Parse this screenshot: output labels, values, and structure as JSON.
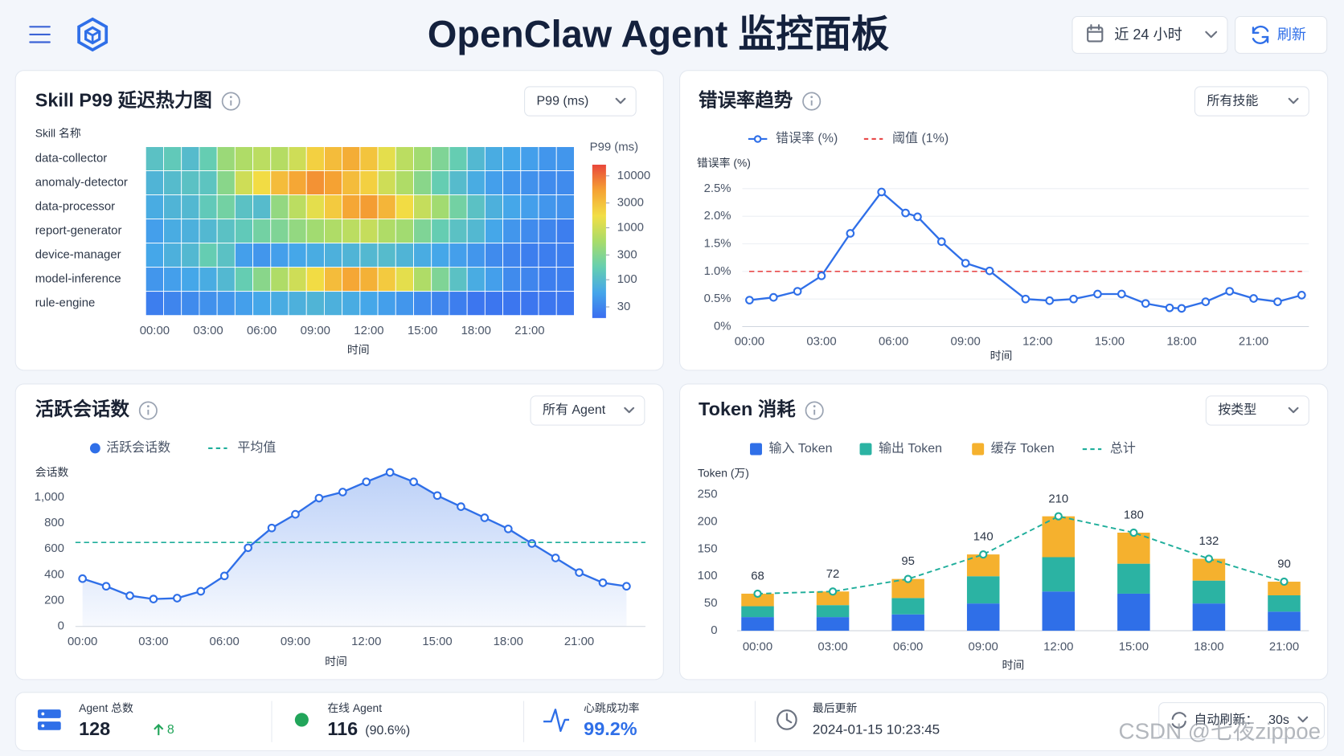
{
  "header": {
    "title": "OpenClaw Agent 监控面板",
    "time_range": "近 24 小时",
    "refresh": "刷新"
  },
  "chart_data": [
    {
      "type": "heatmap",
      "title": "Skill P99 延迟热力图",
      "control": "P99 (ms)",
      "y_label": "Skill 名称",
      "x_label": "时间",
      "colorbar_label": "P99 (ms)",
      "categories": [
        "data-collector",
        "anomaly-detector",
        "data-processor",
        "report-generator",
        "device-manager",
        "model-inference",
        "rule-engine"
      ],
      "x": [
        0,
        1,
        2,
        3,
        4,
        5,
        6,
        7,
        8,
        9,
        10,
        11,
        12,
        13,
        14,
        15,
        16,
        17,
        18,
        19,
        20,
        21,
        22,
        23
      ],
      "xlim": [
        -0.5,
        23.5
      ],
      "xticks": [
        {
          "value": 0,
          "label": "00:00"
        },
        {
          "value": 3,
          "label": "03:00"
        },
        {
          "value": 6,
          "label": "06:00"
        },
        {
          "value": 9,
          "label": "09:00"
        },
        {
          "value": 12,
          "label": "12:00"
        },
        {
          "value": 15,
          "label": "15:00"
        },
        {
          "value": 18,
          "label": "18:00"
        },
        {
          "value": 21,
          "label": "21:00"
        }
      ],
      "values": [
        [
          150,
          180,
          130,
          200,
          450,
          600,
          700,
          650,
          900,
          1800,
          2500,
          3200,
          2200,
          1200,
          700,
          500,
          300,
          200,
          120,
          90,
          80,
          70,
          60,
          60
        ],
        [
          110,
          130,
          150,
          160,
          350,
          900,
          1500,
          2500,
          3500,
          4500,
          3800,
          2500,
          1800,
          900,
          600,
          350,
          200,
          130,
          90,
          70,
          60,
          55,
          50,
          50
        ],
        [
          90,
          110,
          120,
          180,
          250,
          150,
          130,
          400,
          700,
          1200,
          2000,
          3500,
          4000,
          2800,
          1500,
          800,
          500,
          250,
          150,
          100,
          80,
          70,
          60,
          55
        ],
        [
          70,
          90,
          100,
          120,
          150,
          180,
          250,
          300,
          400,
          500,
          600,
          700,
          800,
          600,
          500,
          300,
          200,
          150,
          120,
          80,
          60,
          50,
          45,
          40
        ],
        [
          80,
          100,
          120,
          200,
          150,
          70,
          60,
          70,
          80,
          90,
          100,
          110,
          120,
          130,
          110,
          90,
          80,
          70,
          60,
          50,
          45,
          40,
          40,
          40
        ],
        [
          60,
          70,
          80,
          90,
          120,
          200,
          350,
          600,
          900,
          1500,
          2500,
          3500,
          3000,
          2000,
          1200,
          600,
          300,
          150,
          90,
          70,
          50,
          45,
          40,
          40
        ],
        [
          40,
          45,
          50,
          55,
          60,
          70,
          80,
          90,
          100,
          110,
          100,
          90,
          80,
          70,
          60,
          50,
          45,
          40,
          35,
          35,
          35,
          35,
          35,
          35
        ]
      ],
      "zlim": [
        30,
        10000
      ],
      "zticks": [
        30,
        100,
        300,
        1000,
        3000,
        10000
      ],
      "log_scale": true,
      "colorscale": [
        "#3a6df0",
        "#45a6ea",
        "#66cfb0",
        "#a8dc6a",
        "#f2de45",
        "#f5a233",
        "#e9473b"
      ]
    },
    {
      "type": "line",
      "title": "错误率趋势",
      "control": "所有技能",
      "y_label": "错误率 (%)",
      "x_label": "时间",
      "x": [
        0,
        1,
        2,
        3,
        4.2,
        5.5,
        6.5,
        7,
        8,
        9,
        10,
        11.5,
        12.5,
        13.5,
        14.5,
        15.5,
        16.5,
        17.5,
        18,
        19,
        20,
        21,
        22,
        23
      ],
      "xlim": [
        -0.3,
        23.3
      ],
      "xticks": [
        {
          "value": 0,
          "label": "00:00"
        },
        {
          "value": 3,
          "label": "03:00"
        },
        {
          "value": 6,
          "label": "06:00"
        },
        {
          "value": 9,
          "label": "09:00"
        },
        {
          "value": 12,
          "label": "12:00"
        },
        {
          "value": 15,
          "label": "15:00"
        },
        {
          "value": 18,
          "label": "18:00"
        },
        {
          "value": 21,
          "label": "21:00"
        }
      ],
      "ylim": [
        0,
        2.5
      ],
      "yticks": [
        {
          "value": 0,
          "label": "0%"
        },
        {
          "value": 0.5,
          "label": "0.5%"
        },
        {
          "value": 1,
          "label": "1.0%"
        },
        {
          "value": 1.5,
          "label": "1.5%"
        },
        {
          "value": 2,
          "label": "2.0%"
        },
        {
          "value": 2.5,
          "label": "2.5%"
        }
      ],
      "grid": true,
      "series": [
        {
          "name": "错误率 (%)",
          "color": "#2f6fe8",
          "values": [
            0.48,
            0.53,
            0.64,
            0.92,
            1.69,
            2.44,
            2.06,
            1.99,
            1.54,
            1.15,
            1.01,
            0.5,
            0.47,
            0.5,
            0.59,
            0.59,
            0.42,
            0.34,
            0.33,
            0.45,
            0.64,
            0.51,
            0.45,
            0.57
          ]
        }
      ],
      "threshold": {
        "name": "阈值 (1%)",
        "value": 1,
        "color": "#e84a4a"
      }
    },
    {
      "type": "area",
      "title": "活跃会话数",
      "control": "所有 Agent",
      "y_label": "会话数",
      "x_label": "时间",
      "x": [
        0,
        1,
        2,
        3,
        4,
        5,
        6,
        7,
        8,
        9,
        10,
        11,
        12,
        13,
        14,
        15,
        16,
        17,
        18,
        19,
        20,
        21,
        22,
        23
      ],
      "xlim": [
        -0.3,
        23.8
      ],
      "xticks": [
        {
          "value": 0,
          "label": "00:00"
        },
        {
          "value": 3,
          "label": "03:00"
        },
        {
          "value": 6,
          "label": "06:00"
        },
        {
          "value": 9,
          "label": "09:00"
        },
        {
          "value": 12,
          "label": "12:00"
        },
        {
          "value": 15,
          "label": "15:00"
        },
        {
          "value": 18,
          "label": "18:00"
        },
        {
          "value": 21,
          "label": "21:00"
        }
      ],
      "ylim": [
        0,
        1200
      ],
      "yticks": [
        0,
        200,
        400,
        600,
        800,
        {
          "value": 1000,
          "label": "1,000"
        }
      ],
      "grid": false,
      "series": [
        {
          "name": "活跃会话数",
          "color": "#2f6fe8",
          "values": [
            370,
            311,
            238,
            212,
            219,
            272,
            391,
            609,
            762,
            868,
            993,
            1040,
            1119,
            1192,
            1119,
            1013,
            927,
            841,
            755,
            642,
            530,
            417,
            338,
            311
          ]
        }
      ],
      "average": {
        "name": "平均值",
        "value": 650,
        "color": "#1fae9b"
      }
    },
    {
      "type": "stacked_bar",
      "title": "Token 消耗",
      "control": "按类型",
      "y_label": "Token (万)",
      "x_label": "时间",
      "categories": [
        "00:00",
        "03:00",
        "06:00",
        "09:00",
        "12:00",
        "15:00",
        "18:00",
        "21:00"
      ],
      "ylim": [
        0,
        250
      ],
      "yticks": [
        0,
        50,
        100,
        150,
        200,
        250
      ],
      "series": [
        {
          "name": "输入 Token",
          "color": "#2f6fe8",
          "values": [
            25,
            25,
            30,
            50,
            72,
            68,
            50,
            35
          ]
        },
        {
          "name": "输出 Token",
          "color": "#2bb3a3",
          "values": [
            20,
            22,
            30,
            50,
            63,
            55,
            42,
            30
          ]
        },
        {
          "name": "缓存 Token",
          "color": "#f5b12e",
          "values": [
            23,
            25,
            35,
            40,
            75,
            57,
            40,
            25
          ]
        },
        {
          "name": "总计",
          "type": "line",
          "color": "#1fae9b",
          "values": [
            68,
            72,
            95,
            140,
            210,
            180,
            132,
            90
          ]
        }
      ]
    }
  ],
  "footer": {
    "agents_label": "Agent 总数",
    "agents": 128,
    "agents_change": 8,
    "online_label": "在线 Agent",
    "online": 116,
    "online_share": "(90.6%)",
    "heartbeat_label": "心跳成功率",
    "heartbeat": "99.2%",
    "updated_label": "最后更新",
    "updated": "2024-01-15 10:23:45",
    "auto_refresh_label": "自动刷新：",
    "auto_refresh": "30s"
  },
  "watermark": "CSDN @七夜zippoe"
}
